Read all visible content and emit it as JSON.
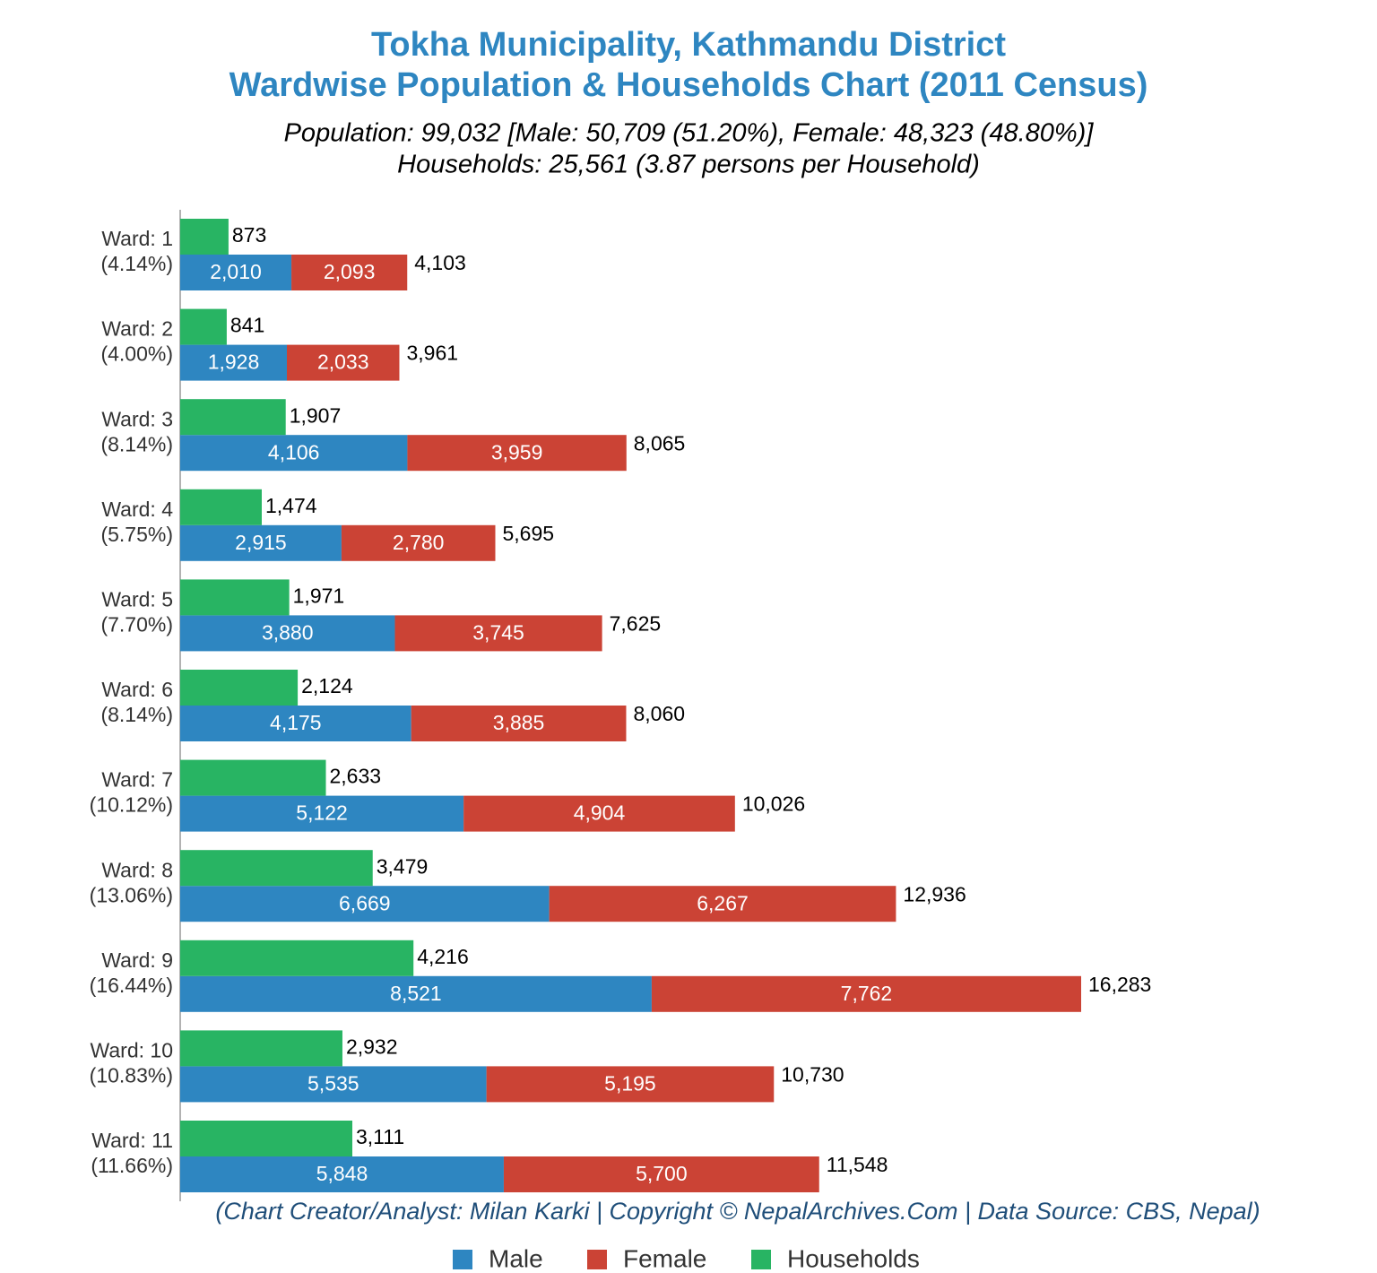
{
  "chart_data": {
    "type": "stacked-grouped-hbar",
    "title": [
      "Tokha Municipality, Kathmandu District",
      "Wardwise Population & Households Chart (2011 Census)"
    ],
    "subtitle": [
      "Population: 99,032 [Male: 50,709 (51.20%), Female: 48,323 (48.80%)]",
      "Households: 25,561 (3.87 persons per Household)"
    ],
    "footer": "(Chart Creator/Analyst: Milan Karki | Copyright © NepalArchives.Com | Data Source: CBS, Nepal)",
    "categories": [
      "Ward: 1",
      "Ward: 2",
      "Ward: 3",
      "Ward: 4",
      "Ward: 5",
      "Ward: 6",
      "Ward: 7",
      "Ward: 8",
      "Ward: 9",
      "Ward: 10",
      "Ward: 11"
    ],
    "category_shares": [
      "(4.14%)",
      "(4.00%)",
      "(8.14%)",
      "(5.75%)",
      "(7.70%)",
      "(8.14%)",
      "(10.12%)",
      "(13.06%)",
      "(16.44%)",
      "(10.83%)",
      "(11.66%)"
    ],
    "series": [
      {
        "name": "Male",
        "color": "#2e86c1",
        "stack": "population",
        "values": [
          2010,
          1928,
          4106,
          2915,
          3880,
          4175,
          5122,
          6669,
          8521,
          5535,
          5848
        ],
        "value_labels": [
          "2,010",
          "1,928",
          "4,106",
          "2,915",
          "3,880",
          "4,175",
          "5,122",
          "6,669",
          "8,521",
          "5,535",
          "5,848"
        ]
      },
      {
        "name": "Female",
        "color": "#cb4335",
        "stack": "population",
        "values": [
          2093,
          2033,
          3959,
          2780,
          3745,
          3885,
          4904,
          6267,
          7762,
          5195,
          5700
        ],
        "value_labels": [
          "2,093",
          "2,033",
          "3,959",
          "2,780",
          "3,745",
          "3,885",
          "4,904",
          "6,267",
          "7,762",
          "5,195",
          "5,700"
        ]
      },
      {
        "name": "Households",
        "color": "#28b463",
        "stack": "households",
        "values": [
          873,
          841,
          1907,
          1474,
          1971,
          2124,
          2633,
          3479,
          4216,
          2932,
          3111
        ],
        "value_labels": [
          "873",
          "841",
          "1,907",
          "1,474",
          "1,971",
          "2,124",
          "2,633",
          "3,479",
          "4,216",
          "2,932",
          "3,111"
        ]
      }
    ],
    "totals": {
      "values": [
        4103,
        3961,
        8065,
        5695,
        7625,
        8060,
        10026,
        12936,
        16283,
        10730,
        11548
      ],
      "value_labels": [
        "4,103",
        "3,961",
        "8,065",
        "5,695",
        "7,625",
        "8,060",
        "10,026",
        "12,936",
        "16,283",
        "10,730",
        "11,548"
      ]
    },
    "xlim": [
      0,
      17000
    ],
    "legend": "bottom"
  }
}
